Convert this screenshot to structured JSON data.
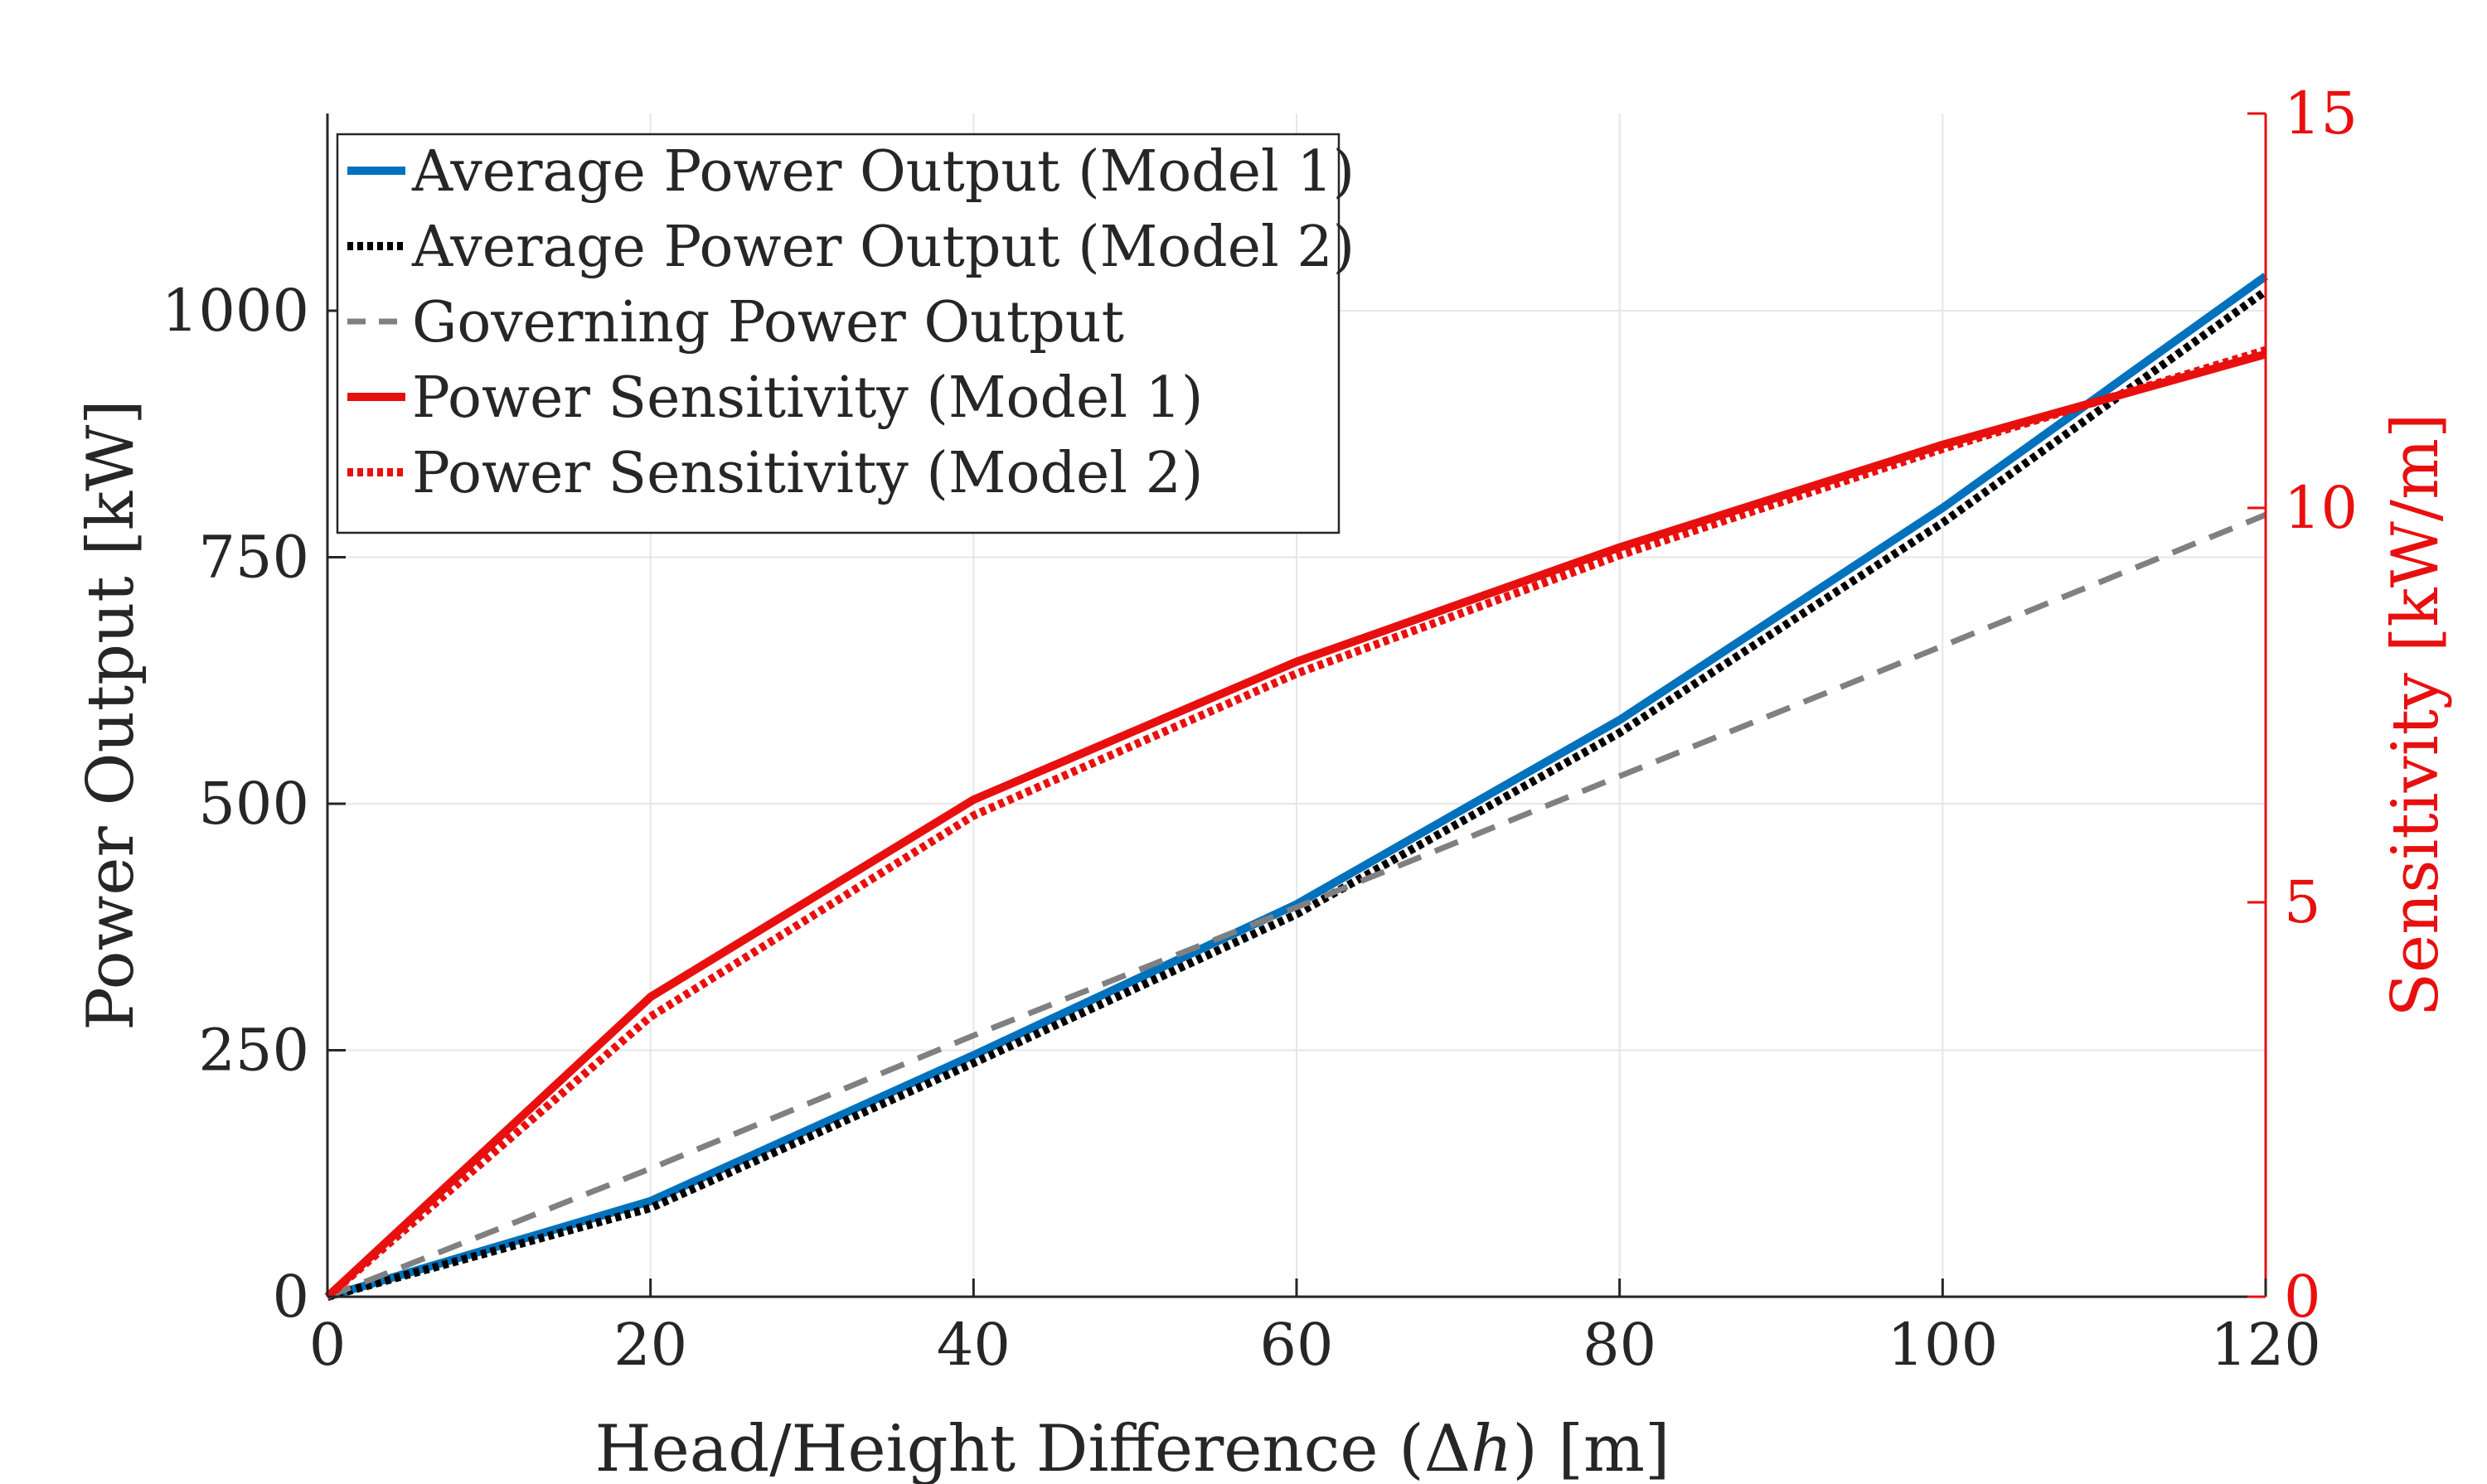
{
  "chart_data": {
    "type": "line",
    "xlabel_main": "Head/Height Difference (",
    "xlabel_delta": "Δ",
    "xlabel_var": "h",
    "xlabel_tail": ") [m]",
    "ylabel_left": "Power Output [kW]",
    "ylabel_right": "Sensitivity [kW/m]",
    "xlim": [
      0,
      120
    ],
    "ylim_left": [
      0,
      1200
    ],
    "ylim_right": [
      0,
      15
    ],
    "xticks": [
      0,
      20,
      40,
      60,
      80,
      100,
      120
    ],
    "yticks_left": [
      0,
      250,
      500,
      750,
      1000
    ],
    "yticks_right": [
      0,
      5,
      10,
      15
    ],
    "grid": true,
    "legend_position": "top-left",
    "colors": {
      "blue": "#0072BD",
      "black": "#000000",
      "gray": "#808080",
      "red": "#E8100F",
      "axis": "#262626",
      "grid": "#e6e6e6"
    },
    "series": [
      {
        "name": "Average Power Output (Model 1)",
        "axis": "left",
        "style": "solid",
        "color": "#0072BD",
        "x": [
          0,
          20,
          40,
          60,
          80,
          100,
          120
        ],
        "values": [
          0,
          97,
          245,
          398,
          585,
          800,
          1035
        ]
      },
      {
        "name": "Average Power Output (Model 2)",
        "axis": "left",
        "style": "dotted",
        "color": "#000000",
        "x": [
          0,
          20,
          40,
          60,
          80,
          100,
          120
        ],
        "values": [
          0,
          90,
          237,
          388,
          572,
          785,
          1020
        ]
      },
      {
        "name": "Governing Power Output",
        "axis": "left",
        "style": "dashed",
        "color": "#808080",
        "x": [
          0,
          20,
          40,
          60,
          80,
          100,
          120
        ],
        "values": [
          0,
          130,
          265,
          395,
          528,
          660,
          793
        ]
      },
      {
        "name": "Power Sensitivity (Model 1)",
        "axis": "right",
        "style": "solid",
        "color": "#E8100F",
        "x": [
          0,
          20,
          40,
          60,
          80,
          100,
          120
        ],
        "values": [
          0,
          3.8,
          6.3,
          8.05,
          9.5,
          10.8,
          11.95
        ]
      },
      {
        "name": "Power Sensitivity (Model 2)",
        "axis": "right",
        "style": "dotted",
        "color": "#E8100F",
        "x": [
          0,
          20,
          40,
          60,
          80,
          100,
          120
        ],
        "values": [
          0,
          3.55,
          6.1,
          7.9,
          9.4,
          10.75,
          12.0
        ]
      }
    ]
  }
}
